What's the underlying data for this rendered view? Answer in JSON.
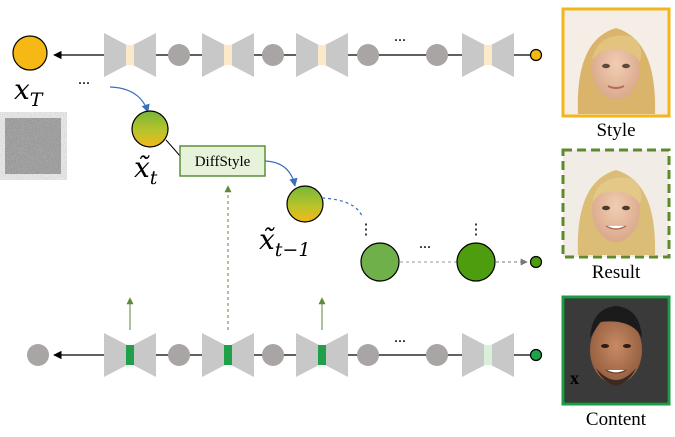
{
  "labels": {
    "xT_base": "x",
    "xT_sub": "T",
    "xt_base": "x̃",
    "xt_sub": "t",
    "xtm1_base": "x̃",
    "xtm1_sub": "t−1",
    "diffstyle": "DiffStyle",
    "ellipsis": "...",
    "vellipsis": "⋮",
    "style": "Style",
    "result": "Result",
    "content": "Content"
  },
  "colors": {
    "block_gray": "#c8c8c8",
    "node_gray": "#a9a5a5",
    "xT_fill": "#f6b815",
    "style_border": "#f2b51a",
    "result_border": "#5e8a2c",
    "content_border": "#1f9a46",
    "diffstyle_fill": "#e6f2da",
    "diffstyle_border": "#5b8f3a",
    "bottleneck_top": "#fce9c7",
    "bottleneck_bottom": "#1fa14a",
    "bottleneck_bottom_faded": "#d9efd9",
    "green_node_light": "#6fb04a",
    "green_node_dark": "#4d9d0f",
    "arrow_blue": "#3b6ec0",
    "arrow_green": "#5a8a3a"
  },
  "icons": [
    "noise-image-icon",
    "style-face-photo",
    "result-face-photo",
    "content-face-photo"
  ]
}
